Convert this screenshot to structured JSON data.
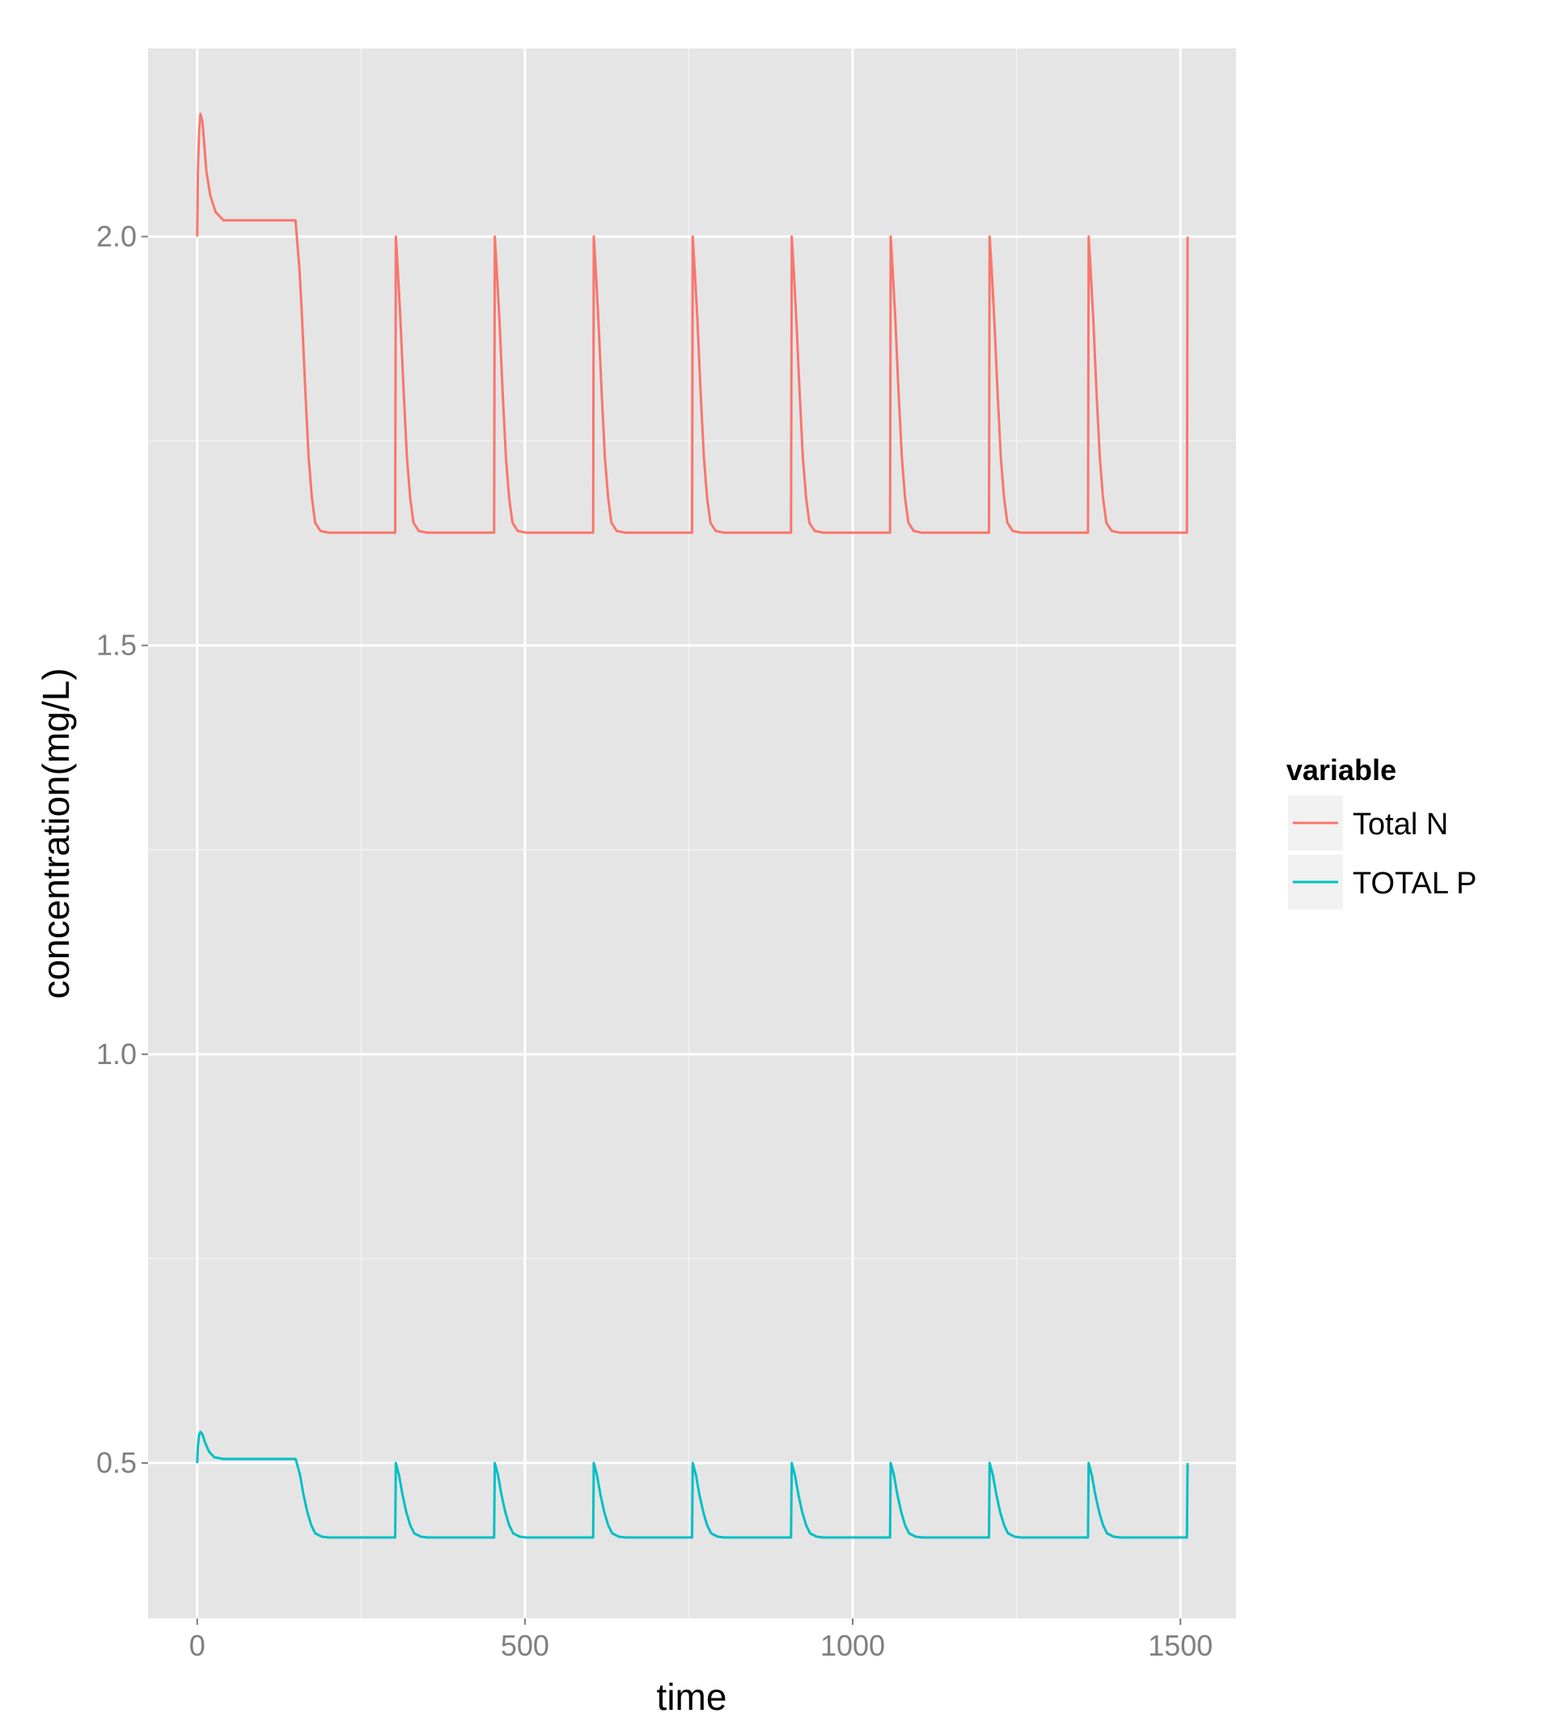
{
  "chart_data": {
    "type": "line",
    "title": "",
    "xlabel": "time",
    "ylabel": "concentration(mg/L)",
    "xlim": [
      -75,
      1585
    ],
    "ylim": [
      0.31,
      2.23
    ],
    "x_ticks": [
      0,
      500,
      1000,
      1500
    ],
    "x_tick_labels": [
      "0",
      "500",
      "1000",
      "1500"
    ],
    "x_minor_ticks": [
      250,
      750,
      1250
    ],
    "y_ticks": [
      0.5,
      1.0,
      1.5,
      2.0
    ],
    "y_tick_labels": [
      "0.5",
      "1.0",
      "1.5",
      "2.0"
    ],
    "y_minor_ticks": [
      0.75,
      1.25,
      1.75
    ],
    "grid": true,
    "background_color": "#e5e5e5",
    "legend": {
      "title": "variable",
      "position": "right"
    },
    "series": [
      {
        "name": "Total N",
        "color": "#f8766d",
        "points": [
          [
            0,
            2.0
          ],
          [
            1,
            2.08
          ],
          [
            3,
            2.13
          ],
          [
            5,
            2.15
          ],
          [
            8,
            2.14
          ],
          [
            10,
            2.12
          ],
          [
            14,
            2.08
          ],
          [
            20,
            2.05
          ],
          [
            28,
            2.03
          ],
          [
            40,
            2.02
          ],
          [
            60,
            2.02
          ],
          [
            100,
            2.02
          ],
          [
            150,
            2.02
          ],
          [
            152,
            2.0
          ],
          [
            156,
            1.96
          ],
          [
            160,
            1.9
          ],
          [
            165,
            1.81
          ],
          [
            170,
            1.73
          ],
          [
            175,
            1.68
          ],
          [
            180,
            1.65
          ],
          [
            188,
            1.64
          ],
          [
            200,
            1.638
          ],
          [
            302,
            1.638
          ],
          [
            303,
            2.0
          ],
          [
            306,
            1.96
          ],
          [
            310,
            1.9
          ],
          [
            315,
            1.81
          ],
          [
            320,
            1.73
          ],
          [
            325,
            1.68
          ],
          [
            330,
            1.65
          ],
          [
            338,
            1.64
          ],
          [
            350,
            1.638
          ],
          [
            453,
            1.638
          ],
          [
            454,
            2.0
          ],
          [
            457,
            1.96
          ],
          [
            461,
            1.9
          ],
          [
            466,
            1.81
          ],
          [
            471,
            1.73
          ],
          [
            476,
            1.68
          ],
          [
            481,
            1.65
          ],
          [
            489,
            1.64
          ],
          [
            501,
            1.638
          ],
          [
            604,
            1.638
          ],
          [
            605,
            2.0
          ],
          [
            608,
            1.96
          ],
          [
            612,
            1.9
          ],
          [
            617,
            1.81
          ],
          [
            622,
            1.73
          ],
          [
            627,
            1.68
          ],
          [
            632,
            1.65
          ],
          [
            640,
            1.64
          ],
          [
            652,
            1.638
          ],
          [
            755,
            1.638
          ],
          [
            756,
            2.0
          ],
          [
            759,
            1.96
          ],
          [
            763,
            1.9
          ],
          [
            768,
            1.81
          ],
          [
            773,
            1.73
          ],
          [
            778,
            1.68
          ],
          [
            783,
            1.65
          ],
          [
            791,
            1.64
          ],
          [
            803,
            1.638
          ],
          [
            906,
            1.638
          ],
          [
            907,
            2.0
          ],
          [
            910,
            1.96
          ],
          [
            914,
            1.9
          ],
          [
            919,
            1.81
          ],
          [
            924,
            1.73
          ],
          [
            929,
            1.68
          ],
          [
            934,
            1.65
          ],
          [
            942,
            1.64
          ],
          [
            954,
            1.638
          ],
          [
            1057,
            1.638
          ],
          [
            1058,
            2.0
          ],
          [
            1061,
            1.96
          ],
          [
            1065,
            1.9
          ],
          [
            1070,
            1.81
          ],
          [
            1075,
            1.73
          ],
          [
            1080,
            1.68
          ],
          [
            1085,
            1.65
          ],
          [
            1093,
            1.64
          ],
          [
            1105,
            1.638
          ],
          [
            1208,
            1.638
          ],
          [
            1209,
            2.0
          ],
          [
            1212,
            1.96
          ],
          [
            1216,
            1.9
          ],
          [
            1221,
            1.81
          ],
          [
            1226,
            1.73
          ],
          [
            1231,
            1.68
          ],
          [
            1236,
            1.65
          ],
          [
            1244,
            1.64
          ],
          [
            1256,
            1.638
          ],
          [
            1359,
            1.638
          ],
          [
            1360,
            2.0
          ],
          [
            1363,
            1.96
          ],
          [
            1367,
            1.9
          ],
          [
            1372,
            1.81
          ],
          [
            1377,
            1.73
          ],
          [
            1382,
            1.68
          ],
          [
            1387,
            1.65
          ],
          [
            1395,
            1.64
          ],
          [
            1407,
            1.638
          ],
          [
            1510,
            1.638
          ],
          [
            1511,
            2.0
          ]
        ]
      },
      {
        "name": "TOTAL P",
        "color": "#00bfc4",
        "points": [
          [
            0,
            0.5
          ],
          [
            1,
            0.52
          ],
          [
            3,
            0.535
          ],
          [
            5,
            0.538
          ],
          [
            8,
            0.535
          ],
          [
            12,
            0.525
          ],
          [
            18,
            0.514
          ],
          [
            26,
            0.507
          ],
          [
            40,
            0.505
          ],
          [
            100,
            0.505
          ],
          [
            150,
            0.505
          ],
          [
            152,
            0.5
          ],
          [
            157,
            0.485
          ],
          [
            162,
            0.462
          ],
          [
            168,
            0.44
          ],
          [
            174,
            0.424
          ],
          [
            180,
            0.414
          ],
          [
            190,
            0.41
          ],
          [
            200,
            0.409
          ],
          [
            302,
            0.409
          ],
          [
            303,
            0.5
          ],
          [
            308,
            0.485
          ],
          [
            313,
            0.462
          ],
          [
            319,
            0.44
          ],
          [
            325,
            0.424
          ],
          [
            331,
            0.414
          ],
          [
            341,
            0.41
          ],
          [
            351,
            0.409
          ],
          [
            453,
            0.409
          ],
          [
            454,
            0.5
          ],
          [
            459,
            0.485
          ],
          [
            464,
            0.462
          ],
          [
            470,
            0.44
          ],
          [
            476,
            0.424
          ],
          [
            482,
            0.414
          ],
          [
            492,
            0.41
          ],
          [
            502,
            0.409
          ],
          [
            604,
            0.409
          ],
          [
            605,
            0.5
          ],
          [
            610,
            0.485
          ],
          [
            615,
            0.462
          ],
          [
            621,
            0.44
          ],
          [
            627,
            0.424
          ],
          [
            633,
            0.414
          ],
          [
            643,
            0.41
          ],
          [
            653,
            0.409
          ],
          [
            755,
            0.409
          ],
          [
            756,
            0.5
          ],
          [
            761,
            0.485
          ],
          [
            766,
            0.462
          ],
          [
            772,
            0.44
          ],
          [
            778,
            0.424
          ],
          [
            784,
            0.414
          ],
          [
            794,
            0.41
          ],
          [
            804,
            0.409
          ],
          [
            906,
            0.409
          ],
          [
            907,
            0.5
          ],
          [
            912,
            0.485
          ],
          [
            917,
            0.462
          ],
          [
            923,
            0.44
          ],
          [
            929,
            0.424
          ],
          [
            935,
            0.414
          ],
          [
            945,
            0.41
          ],
          [
            955,
            0.409
          ],
          [
            1057,
            0.409
          ],
          [
            1058,
            0.5
          ],
          [
            1063,
            0.485
          ],
          [
            1068,
            0.462
          ],
          [
            1074,
            0.44
          ],
          [
            1080,
            0.424
          ],
          [
            1086,
            0.414
          ],
          [
            1096,
            0.41
          ],
          [
            1106,
            0.409
          ],
          [
            1208,
            0.409
          ],
          [
            1209,
            0.5
          ],
          [
            1214,
            0.485
          ],
          [
            1219,
            0.462
          ],
          [
            1225,
            0.44
          ],
          [
            1231,
            0.424
          ],
          [
            1237,
            0.414
          ],
          [
            1247,
            0.41
          ],
          [
            1257,
            0.409
          ],
          [
            1359,
            0.409
          ],
          [
            1360,
            0.5
          ],
          [
            1365,
            0.485
          ],
          [
            1370,
            0.462
          ],
          [
            1376,
            0.44
          ],
          [
            1382,
            0.424
          ],
          [
            1388,
            0.414
          ],
          [
            1398,
            0.41
          ],
          [
            1408,
            0.409
          ],
          [
            1510,
            0.409
          ],
          [
            1511,
            0.5
          ]
        ]
      }
    ]
  }
}
